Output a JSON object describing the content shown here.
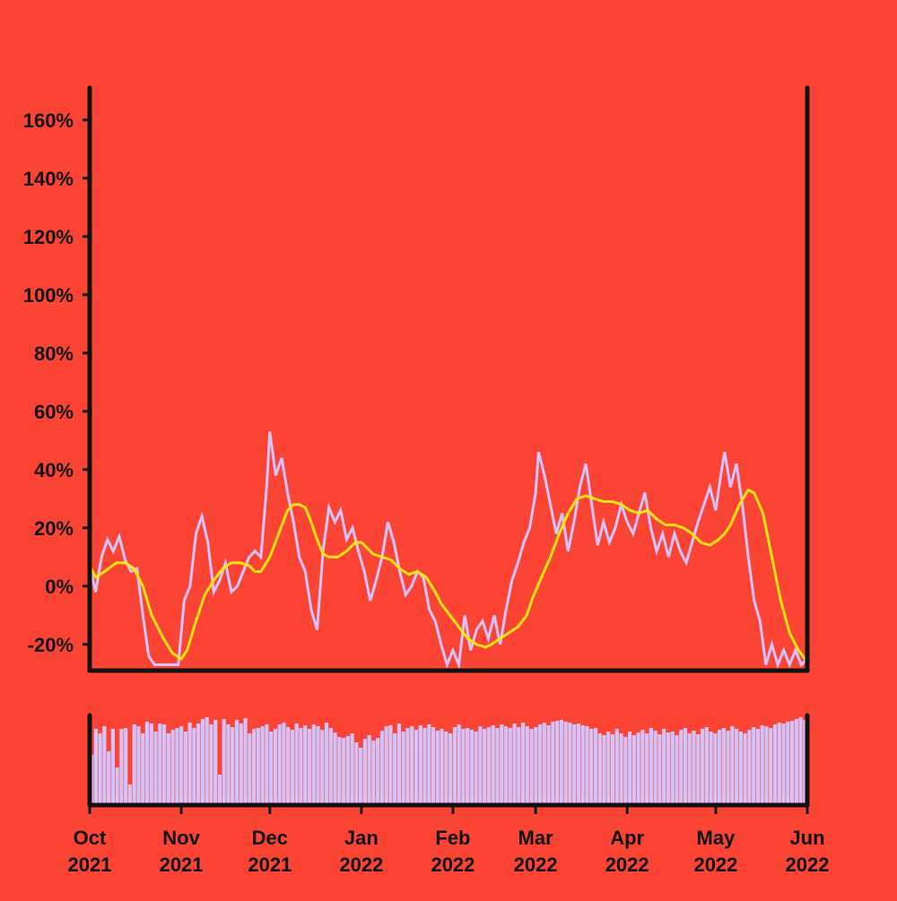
{
  "chart_data": {
    "type": "line",
    "title": "",
    "xlabel": "",
    "ylabel": "",
    "x_start": "2021-10-01",
    "x_end": "2022-06-01",
    "x_ticks": [
      {
        "date": "2021-10-01",
        "label": [
          "Oct",
          "2021"
        ]
      },
      {
        "date": "2021-11-01",
        "label": [
          "Nov",
          "2021"
        ]
      },
      {
        "date": "2021-12-01",
        "label": [
          "Dec",
          "2021"
        ]
      },
      {
        "date": "2022-01-01",
        "label": [
          "Jan",
          "2022"
        ]
      },
      {
        "date": "2022-02-01",
        "label": [
          "Feb",
          "2022"
        ]
      },
      {
        "date": "2022-03-01",
        "label": [
          "Mar",
          "2022"
        ]
      },
      {
        "date": "2022-04-01",
        "label": [
          "Apr",
          "2022"
        ]
      },
      {
        "date": "2022-05-01",
        "label": [
          "May",
          "2022"
        ]
      },
      {
        "date": "2022-06-01",
        "label": [
          "Jun",
          "2022"
        ]
      }
    ],
    "ylim": [
      -29,
      171
    ],
    "y_ticks": [
      {
        "value": -20,
        "label": "-20%"
      },
      {
        "value": 0,
        "label": "0%"
      },
      {
        "value": 20,
        "label": "20%"
      },
      {
        "value": 40,
        "label": "40%"
      },
      {
        "value": 60,
        "label": "60%"
      },
      {
        "value": 80,
        "label": "80%"
      },
      {
        "value": 100,
        "label": "100%"
      },
      {
        "value": 120,
        "label": "120%"
      },
      {
        "value": 140,
        "label": "140%"
      },
      {
        "value": 160,
        "label": "160%"
      }
    ],
    "grid": false,
    "legend": "none",
    "colors": {
      "background": "#fb4433",
      "raw_line": "#d4c4fb",
      "smoothed_line": "#ffe312",
      "volume_bars": "#d4c4fb",
      "axis": "#111111"
    },
    "series": [
      {
        "role": "raw",
        "points": [
          [
            "2021-10-01",
            7
          ],
          [
            "2021-10-03",
            -2
          ],
          [
            "2021-10-05",
            10
          ],
          [
            "2021-10-07",
            16
          ],
          [
            "2021-10-09",
            12
          ],
          [
            "2021-10-11",
            17
          ],
          [
            "2021-10-13",
            9
          ],
          [
            "2021-10-15",
            5
          ],
          [
            "2021-10-17",
            6
          ],
          [
            "2021-10-19",
            -10
          ],
          [
            "2021-10-21",
            -24
          ],
          [
            "2021-10-23",
            -27
          ],
          [
            "2021-10-25",
            -27
          ],
          [
            "2021-10-27",
            -27
          ],
          [
            "2021-10-29",
            -27
          ],
          [
            "2021-10-31",
            -27
          ],
          [
            "2021-11-02",
            -5
          ],
          [
            "2021-11-04",
            0
          ],
          [
            "2021-11-06",
            18
          ],
          [
            "2021-11-08",
            24
          ],
          [
            "2021-11-10",
            15
          ],
          [
            "2021-11-12",
            -2
          ],
          [
            "2021-11-14",
            2
          ],
          [
            "2021-11-16",
            8
          ],
          [
            "2021-11-18",
            -2
          ],
          [
            "2021-11-20",
            0
          ],
          [
            "2021-11-22",
            5
          ],
          [
            "2021-11-24",
            10
          ],
          [
            "2021-11-26",
            12
          ],
          [
            "2021-11-28",
            10
          ],
          [
            "2021-11-30",
            35
          ],
          [
            "2021-12-01",
            53
          ],
          [
            "2021-12-03",
            38
          ],
          [
            "2021-12-05",
            44
          ],
          [
            "2021-12-07",
            32
          ],
          [
            "2021-12-09",
            22
          ],
          [
            "2021-12-11",
            10
          ],
          [
            "2021-12-13",
            5
          ],
          [
            "2021-12-15",
            -8
          ],
          [
            "2021-12-17",
            -15
          ],
          [
            "2021-12-19",
            12
          ],
          [
            "2021-12-21",
            27
          ],
          [
            "2021-12-23",
            22
          ],
          [
            "2021-12-25",
            26
          ],
          [
            "2021-12-27",
            16
          ],
          [
            "2021-12-29",
            20
          ],
          [
            "2021-12-31",
            12
          ],
          [
            "2022-01-02",
            5
          ],
          [
            "2022-01-04",
            -5
          ],
          [
            "2022-01-06",
            2
          ],
          [
            "2022-01-08",
            10
          ],
          [
            "2022-01-10",
            22
          ],
          [
            "2022-01-12",
            15
          ],
          [
            "2022-01-14",
            5
          ],
          [
            "2022-01-16",
            -3
          ],
          [
            "2022-01-18",
            0
          ],
          [
            "2022-01-20",
            5
          ],
          [
            "2022-01-22",
            3
          ],
          [
            "2022-01-24",
            -8
          ],
          [
            "2022-01-26",
            -12
          ],
          [
            "2022-01-28",
            -20
          ],
          [
            "2022-01-30",
            -27
          ],
          [
            "2022-02-01",
            -22
          ],
          [
            "2022-02-03",
            -27
          ],
          [
            "2022-02-05",
            -10
          ],
          [
            "2022-02-07",
            -22
          ],
          [
            "2022-02-09",
            -15
          ],
          [
            "2022-02-11",
            -12
          ],
          [
            "2022-02-13",
            -18
          ],
          [
            "2022-02-15",
            -10
          ],
          [
            "2022-02-17",
            -20
          ],
          [
            "2022-02-19",
            -8
          ],
          [
            "2022-02-21",
            2
          ],
          [
            "2022-02-23",
            8
          ],
          [
            "2022-02-25",
            15
          ],
          [
            "2022-02-27",
            20
          ],
          [
            "2022-03-01",
            32
          ],
          [
            "2022-03-02",
            46
          ],
          [
            "2022-03-04",
            38
          ],
          [
            "2022-03-06",
            28
          ],
          [
            "2022-03-08",
            18
          ],
          [
            "2022-03-10",
            25
          ],
          [
            "2022-03-12",
            12
          ],
          [
            "2022-03-14",
            22
          ],
          [
            "2022-03-16",
            34
          ],
          [
            "2022-03-18",
            42
          ],
          [
            "2022-03-20",
            28
          ],
          [
            "2022-03-22",
            14
          ],
          [
            "2022-03-24",
            22
          ],
          [
            "2022-03-26",
            15
          ],
          [
            "2022-03-28",
            20
          ],
          [
            "2022-03-30",
            28
          ],
          [
            "2022-04-01",
            22
          ],
          [
            "2022-04-03",
            18
          ],
          [
            "2022-04-05",
            25
          ],
          [
            "2022-04-07",
            32
          ],
          [
            "2022-04-09",
            20
          ],
          [
            "2022-04-11",
            12
          ],
          [
            "2022-04-13",
            18
          ],
          [
            "2022-04-15",
            10
          ],
          [
            "2022-04-17",
            18
          ],
          [
            "2022-04-19",
            12
          ],
          [
            "2022-04-21",
            8
          ],
          [
            "2022-04-23",
            15
          ],
          [
            "2022-04-25",
            22
          ],
          [
            "2022-04-27",
            28
          ],
          [
            "2022-04-29",
            34
          ],
          [
            "2022-05-01",
            26
          ],
          [
            "2022-05-03",
            40
          ],
          [
            "2022-05-04",
            46
          ],
          [
            "2022-05-06",
            34
          ],
          [
            "2022-05-08",
            42
          ],
          [
            "2022-05-10",
            28
          ],
          [
            "2022-05-12",
            10
          ],
          [
            "2022-05-14",
            -5
          ],
          [
            "2022-05-16",
            -12
          ],
          [
            "2022-05-18",
            -27
          ],
          [
            "2022-05-20",
            -20
          ],
          [
            "2022-05-22",
            -27
          ],
          [
            "2022-05-24",
            -22
          ],
          [
            "2022-05-26",
            -27
          ],
          [
            "2022-05-28",
            -22
          ],
          [
            "2022-05-30",
            -27
          ],
          [
            "2022-06-01",
            -25
          ]
        ]
      },
      {
        "role": "smoothed",
        "points": [
          [
            "2021-10-01",
            7
          ],
          [
            "2021-10-03",
            3
          ],
          [
            "2021-10-06",
            5
          ],
          [
            "2021-10-10",
            8
          ],
          [
            "2021-10-13",
            8
          ],
          [
            "2021-10-16",
            6
          ],
          [
            "2021-10-19",
            0
          ],
          [
            "2021-10-22",
            -10
          ],
          [
            "2021-10-26",
            -18
          ],
          [
            "2021-10-29",
            -23
          ],
          [
            "2021-11-01",
            -25
          ],
          [
            "2021-11-03",
            -22
          ],
          [
            "2021-11-06",
            -12
          ],
          [
            "2021-11-09",
            -3
          ],
          [
            "2021-11-12",
            2
          ],
          [
            "2021-11-15",
            6
          ],
          [
            "2021-11-18",
            8
          ],
          [
            "2021-11-21",
            8
          ],
          [
            "2021-11-24",
            7
          ],
          [
            "2021-11-26",
            5
          ],
          [
            "2021-11-28",
            5
          ],
          [
            "2021-12-01",
            10
          ],
          [
            "2021-12-04",
            18
          ],
          [
            "2021-12-07",
            26
          ],
          [
            "2021-12-09",
            28
          ],
          [
            "2021-12-11",
            28
          ],
          [
            "2021-12-13",
            27
          ],
          [
            "2021-12-15",
            22
          ],
          [
            "2021-12-17",
            16
          ],
          [
            "2021-12-19",
            11
          ],
          [
            "2021-12-21",
            10
          ],
          [
            "2021-12-24",
            10
          ],
          [
            "2021-12-27",
            12
          ],
          [
            "2021-12-30",
            15
          ],
          [
            "2022-01-01",
            15
          ],
          [
            "2022-01-03",
            13
          ],
          [
            "2022-01-05",
            11
          ],
          [
            "2022-01-08",
            10
          ],
          [
            "2022-01-11",
            9
          ],
          [
            "2022-01-14",
            6
          ],
          [
            "2022-01-17",
            4
          ],
          [
            "2022-01-20",
            5
          ],
          [
            "2022-01-23",
            3
          ],
          [
            "2022-01-26",
            -2
          ],
          [
            "2022-01-28",
            -6
          ],
          [
            "2022-01-31",
            -10
          ],
          [
            "2022-02-03",
            -14
          ],
          [
            "2022-02-06",
            -18
          ],
          [
            "2022-02-09",
            -20
          ],
          [
            "2022-02-12",
            -21
          ],
          [
            "2022-02-14",
            -20
          ],
          [
            "2022-02-17",
            -18
          ],
          [
            "2022-02-20",
            -16
          ],
          [
            "2022-02-23",
            -14
          ],
          [
            "2022-02-26",
            -10
          ],
          [
            "2022-02-28",
            -4
          ],
          [
            "2022-03-03",
            3
          ],
          [
            "2022-03-06",
            10
          ],
          [
            "2022-03-09",
            18
          ],
          [
            "2022-03-12",
            25
          ],
          [
            "2022-03-15",
            30
          ],
          [
            "2022-03-18",
            31
          ],
          [
            "2022-03-21",
            30
          ],
          [
            "2022-03-24",
            29
          ],
          [
            "2022-03-27",
            29
          ],
          [
            "2022-03-30",
            28
          ],
          [
            "2022-04-02",
            26
          ],
          [
            "2022-04-05",
            25
          ],
          [
            "2022-04-08",
            26
          ],
          [
            "2022-04-11",
            23
          ],
          [
            "2022-04-14",
            21
          ],
          [
            "2022-04-17",
            21
          ],
          [
            "2022-04-20",
            20
          ],
          [
            "2022-04-23",
            18
          ],
          [
            "2022-04-26",
            15
          ],
          [
            "2022-04-29",
            14
          ],
          [
            "2022-05-02",
            16
          ],
          [
            "2022-05-04",
            18
          ],
          [
            "2022-05-06",
            21
          ],
          [
            "2022-05-09",
            28
          ],
          [
            "2022-05-12",
            33
          ],
          [
            "2022-05-14",
            32
          ],
          [
            "2022-05-17",
            25
          ],
          [
            "2022-05-20",
            10
          ],
          [
            "2022-05-23",
            -5
          ],
          [
            "2022-05-26",
            -16
          ],
          [
            "2022-05-29",
            -22
          ],
          [
            "2022-06-01",
            -26
          ]
        ]
      }
    ],
    "volume": {
      "ylim": [
        0,
        1
      ],
      "values": [
        0.56,
        0.85,
        0.8,
        0.88,
        0.6,
        0.85,
        0.42,
        0.85,
        0.86,
        0.23,
        0.9,
        0.88,
        0.8,
        0.93,
        0.91,
        0.82,
        0.91,
        0.9,
        0.8,
        0.84,
        0.86,
        0.88,
        0.82,
        0.92,
        0.86,
        0.91,
        0.96,
        0.98,
        0.9,
        0.95,
        0.34,
        0.96,
        0.9,
        0.87,
        0.95,
        0.91,
        0.97,
        0.8,
        0.85,
        0.86,
        0.88,
        0.9,
        0.82,
        0.85,
        0.9,
        0.92,
        0.87,
        0.84,
        0.91,
        0.86,
        0.89,
        0.85,
        0.9,
        0.88,
        0.84,
        0.92,
        0.86,
        0.81,
        0.76,
        0.75,
        0.77,
        0.8,
        0.7,
        0.64,
        0.74,
        0.78,
        0.72,
        0.75,
        0.83,
        0.88,
        0.89,
        0.8,
        0.91,
        0.82,
        0.86,
        0.88,
        0.84,
        0.89,
        0.86,
        0.9,
        0.87,
        0.83,
        0.85,
        0.82,
        0.8,
        0.87,
        0.9,
        0.85,
        0.86,
        0.84,
        0.82,
        0.88,
        0.85,
        0.87,
        0.89,
        0.86,
        0.9,
        0.88,
        0.86,
        0.91,
        0.87,
        0.92,
        0.88,
        0.85,
        0.87,
        0.9,
        0.92,
        0.89,
        0.93,
        0.94,
        0.95,
        0.93,
        0.92,
        0.9,
        0.91,
        0.89,
        0.88,
        0.85,
        0.86,
        0.8,
        0.78,
        0.82,
        0.79,
        0.85,
        0.8,
        0.76,
        0.82,
        0.78,
        0.81,
        0.84,
        0.8,
        0.86,
        0.83,
        0.79,
        0.85,
        0.81,
        0.82,
        0.78,
        0.84,
        0.86,
        0.8,
        0.83,
        0.79,
        0.85,
        0.87,
        0.82,
        0.8,
        0.84,
        0.86,
        0.83,
        0.88,
        0.85,
        0.82,
        0.8,
        0.84,
        0.87,
        0.85,
        0.89,
        0.88,
        0.86,
        0.9,
        0.92,
        0.91,
        0.93,
        0.94,
        0.96,
        0.98,
        0.95
      ]
    }
  }
}
